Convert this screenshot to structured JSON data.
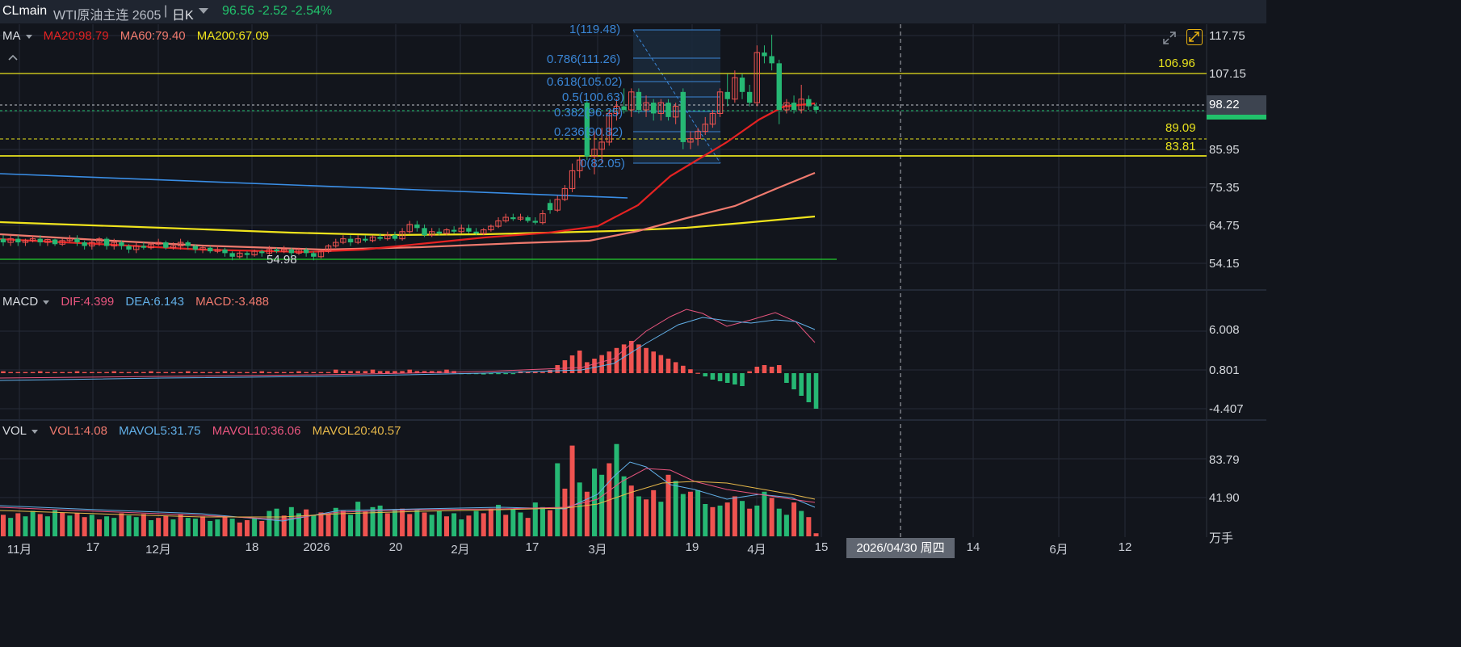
{
  "header": {
    "symbol": "CLmain",
    "name": "WTI原油主连 2605",
    "sep": "|",
    "period": "日K",
    "quote": "96.56 -2.52 -2.54%"
  },
  "ma": {
    "label": "MA",
    "ma20": "MA20:98.79",
    "ma60": "MA60:79.40",
    "ma200": "MA200:67.09"
  },
  "macd": {
    "label": "MACD",
    "dif": "DIF:4.399",
    "dea": "DEA:6.143",
    "macd": "MACD:-3.488"
  },
  "vol": {
    "label": "VOL",
    "vol1": "VOL1:4.08",
    "mavol5": "MAVOL5:31.75",
    "mavol10": "MAVOL10:36.06",
    "mavol20": "MAVOL20:40.57"
  },
  "price_axis": [
    "117.75",
    "107.15",
    "85.95",
    "75.35",
    "64.75",
    "54.15"
  ],
  "price_tag": "98.22",
  "macd_axis": [
    "6.008",
    "0.801",
    "-4.407"
  ],
  "vol_axis": [
    "83.79",
    "41.90",
    "万手"
  ],
  "hlines": {
    "l1": "106.96",
    "l2": "89.09",
    "l3": "83.81"
  },
  "low_label": "54.98",
  "fib": {
    "f1": "1(119.48)",
    "f786": "0.786(111.26)",
    "f618": "0.618(105.02)",
    "f5": "0.5(100.63)",
    "f382": "0.382(96.25)",
    "f236": "0.236(90.82)",
    "f0": "0(82.05)"
  },
  "x_axis": [
    "11月",
    "17",
    "12月",
    "18",
    "2026",
    "20",
    "2月",
    "17",
    "3月",
    "19",
    "4月",
    "15",
    "14",
    "6月",
    "12"
  ],
  "crosshair_date": "2026/04/30 周四",
  "colors": {
    "up": "#ef5350",
    "down": "#26b874",
    "ma20": "#e52222",
    "ma60": "#f07a6e",
    "ma200": "#f0e41c",
    "blue_line": "#3a8ee6"
  },
  "icons": {
    "collapse": "chevron-up-icon",
    "expand": "expand-icon",
    "fullscreen": "fullscreen-icon"
  },
  "chart_data": {
    "type": "candlestick",
    "x_range": [
      "11月",
      "6月"
    ],
    "ylim": [
      54.15,
      117.75
    ],
    "candles": [
      {
        "i": 0,
        "o": 61,
        "c": 60,
        "h": 62,
        "l": 59
      },
      {
        "i": 1,
        "o": 60,
        "c": 61,
        "h": 62,
        "l": 59
      },
      {
        "i": 2,
        "o": 61,
        "c": 60,
        "h": 62,
        "l": 59
      },
      {
        "i": 3,
        "o": 60,
        "c": 60.5,
        "h": 61,
        "l": 59
      },
      {
        "i": 4,
        "o": 60.5,
        "c": 61,
        "h": 62,
        "l": 60
      },
      {
        "i": 5,
        "o": 61,
        "c": 60,
        "h": 62,
        "l": 59
      },
      {
        "i": 6,
        "o": 60,
        "c": 60.8,
        "h": 61,
        "l": 59
      },
      {
        "i": 7,
        "o": 60.8,
        "c": 59.5,
        "h": 61,
        "l": 59
      },
      {
        "i": 8,
        "o": 59.5,
        "c": 60.5,
        "h": 61,
        "l": 59
      },
      {
        "i": 9,
        "o": 60.5,
        "c": 61,
        "h": 62,
        "l": 60
      },
      {
        "i": 10,
        "o": 61,
        "c": 60,
        "h": 62,
        "l": 59
      },
      {
        "i": 11,
        "o": 60,
        "c": 59,
        "h": 60.5,
        "l": 58
      },
      {
        "i": 12,
        "o": 59,
        "c": 60,
        "h": 61,
        "l": 58
      },
      {
        "i": 13,
        "o": 60,
        "c": 61,
        "h": 61.5,
        "l": 59
      },
      {
        "i": 14,
        "o": 61,
        "c": 59,
        "h": 61.5,
        "l": 58
      },
      {
        "i": 15,
        "o": 59,
        "c": 60,
        "h": 61,
        "l": 58
      },
      {
        "i": 16,
        "o": 60,
        "c": 59,
        "h": 60.5,
        "l": 58
      },
      {
        "i": 17,
        "o": 59,
        "c": 58,
        "h": 59.5,
        "l": 57
      },
      {
        "i": 18,
        "o": 58,
        "c": 59,
        "h": 60,
        "l": 57
      },
      {
        "i": 19,
        "o": 59,
        "c": 58.5,
        "h": 60,
        "l": 58
      },
      {
        "i": 20,
        "o": 58.5,
        "c": 59.5,
        "h": 60,
        "l": 58
      },
      {
        "i": 21,
        "o": 59.5,
        "c": 60,
        "h": 61,
        "l": 59
      },
      {
        "i": 22,
        "o": 60,
        "c": 58.5,
        "h": 60.5,
        "l": 58
      },
      {
        "i": 23,
        "o": 58.5,
        "c": 59,
        "h": 60,
        "l": 58
      },
      {
        "i": 24,
        "o": 59,
        "c": 60,
        "h": 61,
        "l": 58
      },
      {
        "i": 25,
        "o": 60,
        "c": 59,
        "h": 60.5,
        "l": 58
      },
      {
        "i": 26,
        "o": 59,
        "c": 58,
        "h": 59.5,
        "l": 57
      },
      {
        "i": 27,
        "o": 58,
        "c": 58.5,
        "h": 59,
        "l": 57
      },
      {
        "i": 28,
        "o": 58.5,
        "c": 57.5,
        "h": 59,
        "l": 57
      },
      {
        "i": 29,
        "o": 57.5,
        "c": 58,
        "h": 59,
        "l": 57
      },
      {
        "i": 30,
        "o": 58,
        "c": 57,
        "h": 58.5,
        "l": 56
      },
      {
        "i": 31,
        "o": 57,
        "c": 56,
        "h": 57.5,
        "l": 55
      },
      {
        "i": 32,
        "o": 56,
        "c": 57,
        "h": 57.5,
        "l": 55.5
      },
      {
        "i": 33,
        "o": 57,
        "c": 56.5,
        "h": 57.5,
        "l": 55.5
      },
      {
        "i": 34,
        "o": 56.5,
        "c": 57.5,
        "h": 58,
        "l": 56
      },
      {
        "i": 35,
        "o": 57.5,
        "c": 57,
        "h": 58,
        "l": 56
      },
      {
        "i": 36,
        "o": 57,
        "c": 58,
        "h": 59,
        "l": 56.5
      },
      {
        "i": 37,
        "o": 58,
        "c": 57.5,
        "h": 58.5,
        "l": 57
      },
      {
        "i": 38,
        "o": 57.5,
        "c": 58,
        "h": 59,
        "l": 57
      },
      {
        "i": 39,
        "o": 58,
        "c": 57,
        "h": 58.5,
        "l": 56
      },
      {
        "i": 40,
        "o": 57,
        "c": 58,
        "h": 58.5,
        "l": 56.5
      },
      {
        "i": 41,
        "o": 58,
        "c": 57,
        "h": 58.5,
        "l": 56
      },
      {
        "i": 42,
        "o": 57,
        "c": 56,
        "h": 57.5,
        "l": 55
      },
      {
        "i": 43,
        "o": 56,
        "c": 57.5,
        "h": 58,
        "l": 55.5
      },
      {
        "i": 44,
        "o": 57.5,
        "c": 59,
        "h": 59.5,
        "l": 57
      },
      {
        "i": 45,
        "o": 59,
        "c": 60,
        "h": 61,
        "l": 58.5
      },
      {
        "i": 46,
        "o": 60,
        "c": 61,
        "h": 62,
        "l": 59.5
      },
      {
        "i": 47,
        "o": 61,
        "c": 60,
        "h": 62,
        "l": 59
      },
      {
        "i": 48,
        "o": 60,
        "c": 61,
        "h": 62,
        "l": 59.5
      },
      {
        "i": 49,
        "o": 61,
        "c": 60.5,
        "h": 62,
        "l": 60
      },
      {
        "i": 50,
        "o": 60.5,
        "c": 61.5,
        "h": 62,
        "l": 60
      },
      {
        "i": 51,
        "o": 61.5,
        "c": 61,
        "h": 62.5,
        "l": 60.5
      },
      {
        "i": 52,
        "o": 61,
        "c": 62,
        "h": 63,
        "l": 60.5
      },
      {
        "i": 53,
        "o": 62,
        "c": 61,
        "h": 63,
        "l": 60.5
      },
      {
        "i": 54,
        "o": 61,
        "c": 63,
        "h": 64,
        "l": 60.5
      },
      {
        "i": 55,
        "o": 63,
        "c": 65,
        "h": 66,
        "l": 62.5
      },
      {
        "i": 56,
        "o": 65,
        "c": 64,
        "h": 66,
        "l": 63
      },
      {
        "i": 57,
        "o": 64,
        "c": 62,
        "h": 65,
        "l": 61.5
      },
      {
        "i": 58,
        "o": 62,
        "c": 63,
        "h": 64,
        "l": 61.5
      },
      {
        "i": 59,
        "o": 63,
        "c": 62.5,
        "h": 64,
        "l": 62
      },
      {
        "i": 60,
        "o": 62.5,
        "c": 63.5,
        "h": 64,
        "l": 62
      },
      {
        "i": 61,
        "o": 63.5,
        "c": 63,
        "h": 64.5,
        "l": 62.5
      },
      {
        "i": 62,
        "o": 63,
        "c": 64,
        "h": 65,
        "l": 62.5
      },
      {
        "i": 63,
        "o": 64,
        "c": 63,
        "h": 65,
        "l": 62.5
      },
      {
        "i": 64,
        "o": 63,
        "c": 62.5,
        "h": 64,
        "l": 62
      },
      {
        "i": 65,
        "o": 62.5,
        "c": 63.5,
        "h": 64,
        "l": 62
      },
      {
        "i": 66,
        "o": 63.5,
        "c": 64.5,
        "h": 65,
        "l": 63
      },
      {
        "i": 67,
        "o": 64.5,
        "c": 66,
        "h": 67,
        "l": 64
      },
      {
        "i": 68,
        "o": 66,
        "c": 67,
        "h": 68,
        "l": 65.5
      },
      {
        "i": 69,
        "o": 67,
        "c": 66.5,
        "h": 68,
        "l": 66
      },
      {
        "i": 70,
        "o": 66.5,
        "c": 67,
        "h": 68,
        "l": 66
      },
      {
        "i": 71,
        "o": 67,
        "c": 66,
        "h": 67.5,
        "l": 65.5
      },
      {
        "i": 72,
        "o": 66,
        "c": 65.5,
        "h": 67,
        "l": 65
      },
      {
        "i": 73,
        "o": 65.5,
        "c": 68,
        "h": 69,
        "l": 65
      },
      {
        "i": 74,
        "o": 71,
        "c": 69,
        "h": 72,
        "l": 68
      },
      {
        "i": 75,
        "o": 69,
        "c": 72,
        "h": 73,
        "l": 68.5
      },
      {
        "i": 76,
        "o": 72,
        "c": 75,
        "h": 76,
        "l": 71.5
      },
      {
        "i": 77,
        "o": 75,
        "c": 80,
        "h": 82,
        "l": 74
      },
      {
        "i": 78,
        "o": 80,
        "c": 83,
        "h": 84,
        "l": 78
      },
      {
        "i": 79,
        "o": 99,
        "c": 84,
        "h": 100,
        "l": 83
      },
      {
        "i": 80,
        "o": 84,
        "c": 86,
        "h": 91,
        "l": 79
      },
      {
        "i": 81,
        "o": 86,
        "c": 88,
        "h": 92,
        "l": 82
      },
      {
        "i": 82,
        "o": 88,
        "c": 96,
        "h": 97,
        "l": 87
      },
      {
        "i": 83,
        "o": 96,
        "c": 98,
        "h": 100,
        "l": 94
      },
      {
        "i": 84,
        "o": 98,
        "c": 97,
        "h": 103,
        "l": 96
      },
      {
        "i": 85,
        "o": 97,
        "c": 102,
        "h": 103,
        "l": 95
      },
      {
        "i": 86,
        "o": 102,
        "c": 97,
        "h": 103,
        "l": 96
      },
      {
        "i": 87,
        "o": 97,
        "c": 99,
        "h": 101,
        "l": 95
      },
      {
        "i": 88,
        "o": 99,
        "c": 96,
        "h": 100,
        "l": 94
      },
      {
        "i": 89,
        "o": 96,
        "c": 99,
        "h": 100,
        "l": 94
      },
      {
        "i": 90,
        "o": 99,
        "c": 95,
        "h": 100,
        "l": 94
      },
      {
        "i": 91,
        "o": 95,
        "c": 98,
        "h": 99,
        "l": 93
      },
      {
        "i": 92,
        "o": 102,
        "c": 88,
        "h": 103,
        "l": 86
      },
      {
        "i": 93,
        "o": 88,
        "c": 89,
        "h": 91,
        "l": 86
      },
      {
        "i": 94,
        "o": 89,
        "c": 91,
        "h": 92,
        "l": 87
      },
      {
        "i": 95,
        "o": 91,
        "c": 93,
        "h": 95,
        "l": 90
      },
      {
        "i": 96,
        "o": 93,
        "c": 96,
        "h": 97,
        "l": 92
      },
      {
        "i": 97,
        "o": 96,
        "c": 102,
        "h": 103,
        "l": 95
      },
      {
        "i": 98,
        "o": 102,
        "c": 100,
        "h": 107,
        "l": 98
      },
      {
        "i": 99,
        "o": 100,
        "c": 106,
        "h": 108,
        "l": 99
      },
      {
        "i": 100,
        "o": 106,
        "c": 102,
        "h": 107,
        "l": 100
      },
      {
        "i": 101,
        "o": 102,
        "c": 99,
        "h": 104,
        "l": 98
      },
      {
        "i": 102,
        "o": 99,
        "c": 113,
        "h": 115,
        "l": 98
      },
      {
        "i": 103,
        "o": 113,
        "c": 112,
        "h": 115,
        "l": 110
      },
      {
        "i": 104,
        "o": 112,
        "c": 110,
        "h": 118,
        "l": 108
      },
      {
        "i": 105,
        "o": 110,
        "c": 97,
        "h": 111,
        "l": 93
      },
      {
        "i": 106,
        "o": 97,
        "c": 99,
        "h": 100,
        "l": 96
      },
      {
        "i": 107,
        "o": 99,
        "c": 97,
        "h": 101,
        "l": 96
      },
      {
        "i": 108,
        "o": 97,
        "c": 100,
        "h": 104,
        "l": 96
      },
      {
        "i": 109,
        "o": 100,
        "c": 98,
        "h": 101,
        "l": 97
      },
      {
        "i": 110,
        "o": 98,
        "c": 97,
        "h": 99,
        "l": 96
      }
    ]
  }
}
